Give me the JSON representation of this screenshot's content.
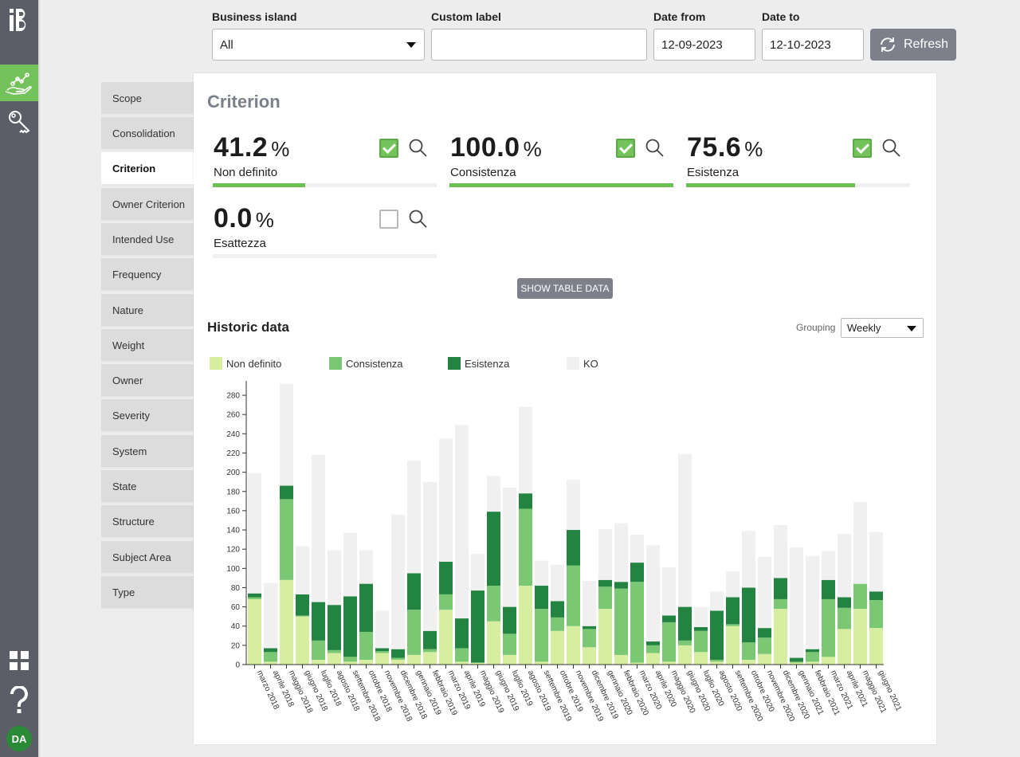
{
  "app": {
    "logo": "iB",
    "avatar": "DA"
  },
  "rail": {
    "items": [
      {
        "name": "analytics-hand-icon",
        "active": true
      },
      {
        "name": "key-icon",
        "active": false
      }
    ],
    "bottom": [
      "grid-icon",
      "help-icon"
    ]
  },
  "filters": {
    "business_island": {
      "label": "Business island",
      "value": "All"
    },
    "custom_label": {
      "label": "Custom label",
      "value": ""
    },
    "date_from": {
      "label": "Date from",
      "value": "12-09-2023"
    },
    "date_to": {
      "label": "Date to",
      "value": "12-10-2023"
    },
    "refresh_label": "Refresh"
  },
  "tabs": [
    {
      "label": "Scope",
      "active": false
    },
    {
      "label": "Consolidation",
      "active": false
    },
    {
      "label": "Criterion",
      "active": true
    },
    {
      "label": "Owner Criterion",
      "active": false
    },
    {
      "label": "Intended Use",
      "active": false
    },
    {
      "label": "Frequency",
      "active": false
    },
    {
      "label": "Nature",
      "active": false
    },
    {
      "label": "Weight",
      "active": false
    },
    {
      "label": "Owner",
      "active": false
    },
    {
      "label": "Severity",
      "active": false
    },
    {
      "label": "System",
      "active": false
    },
    {
      "label": "State",
      "active": false
    },
    {
      "label": "Structure",
      "active": false
    },
    {
      "label": "Subject Area",
      "active": false
    },
    {
      "label": "Type",
      "active": false
    }
  ],
  "panel": {
    "title": "Criterion",
    "kpis": [
      {
        "value": "41.2",
        "unit": "%",
        "label": "Non definito",
        "checked": true,
        "progress": 0.412
      },
      {
        "value": "100.0",
        "unit": "%",
        "label": "Consistenza",
        "checked": true,
        "progress": 1.0
      },
      {
        "value": "75.6",
        "unit": "%",
        "label": "Esistenza",
        "checked": true,
        "progress": 0.756
      },
      {
        "value": "0.0",
        "unit": "%",
        "label": "Esattezza",
        "checked": false,
        "progress": 0.0
      }
    ],
    "show_table_label": "SHOW TABLE DATA",
    "historic_title": "Historic data",
    "grouping_label": "Grouping",
    "grouping_value": "Weekly"
  },
  "colors": {
    "Non definito": "#d5ee9f",
    "Consistenza": "#7ac874",
    "Esistenza": "#238340",
    "KO": "#f0f0f0"
  },
  "chart_data": {
    "type": "bar",
    "stacked": true,
    "ylim": [
      0,
      290
    ],
    "yticks": [
      0,
      20,
      40,
      60,
      80,
      100,
      120,
      140,
      160,
      180,
      200,
      220,
      240,
      260,
      280
    ],
    "categories": [
      "marzo 2018",
      "aprile 2018",
      "maggio 2018",
      "giugno 2018",
      "luglio 2018",
      "agosto 2018",
      "settembre 2018",
      "ottobre 2018",
      "novembre 2018",
      "dicembre 2018",
      "gennaio 2019",
      "febbraio 2019",
      "marzo 2019",
      "aprile 2019",
      "maggio 2019",
      "giugno 2019",
      "luglio 2019",
      "agosto 2019",
      "settembre 2019",
      "ottobre 2019",
      "novembre 2019",
      "dicembre 2019",
      "gennaio 2020",
      "febbraio 2020",
      "marzo 2020",
      "aprile 2020",
      "maggio 2020",
      "giugno 2020",
      "luglio 2020",
      "agosto 2020",
      "settembre 2020",
      "ottobre 2020",
      "novembre 2020",
      "dicembre 2020",
      "gennaio 2021",
      "febbraio 2021",
      "marzo 2021",
      "aprile 2021",
      "maggio 2021",
      "giugno 2021"
    ],
    "series": [
      {
        "name": "Non definito",
        "values": [
          68,
          3,
          88,
          50,
          5,
          12,
          3,
          5,
          12,
          5,
          10,
          13,
          57,
          3,
          2,
          45,
          10,
          82,
          3,
          35,
          40,
          18,
          58,
          10,
          2,
          12,
          3,
          20,
          13,
          3,
          40,
          5,
          11,
          58,
          2,
          3,
          8,
          37,
          58,
          38
        ]
      },
      {
        "name": "Consistenza",
        "values": [
          2,
          10,
          84,
          1,
          20,
          3,
          5,
          29,
          2,
          2,
          47,
          3,
          16,
          14,
          0,
          37,
          22,
          80,
          55,
          14,
          63,
          19,
          23,
          69,
          84,
          8,
          41,
          5,
          22,
          2,
          2,
          18,
          17,
          10,
          1,
          10,
          60,
          22,
          26,
          29
        ]
      },
      {
        "name": "Esistenza",
        "values": [
          4,
          4,
          14,
          22,
          40,
          47,
          63,
          50,
          3,
          9,
          38,
          19,
          34,
          31,
          75,
          77,
          28,
          16,
          24,
          17,
          37,
          3,
          7,
          7,
          20,
          4,
          7,
          35,
          4,
          51,
          28,
          57,
          10,
          22,
          4,
          3,
          20,
          11,
          0,
          9
        ]
      },
      {
        "name": "KO",
        "values": [
          125,
          68,
          106,
          50,
          153,
          57,
          66,
          35,
          39,
          140,
          117,
          155,
          128,
          201,
          38,
          37,
          124,
          90,
          26,
          38,
          52,
          47,
          53,
          61,
          29,
          100,
          50,
          159,
          21,
          20,
          27,
          59,
          74,
          55,
          115,
          97,
          30,
          66,
          85,
          62
        ]
      }
    ]
  }
}
